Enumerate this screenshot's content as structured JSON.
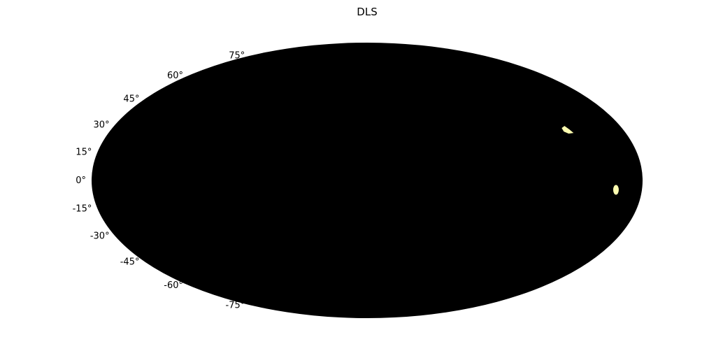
{
  "chart_data": {
    "type": "heatmap",
    "title": "DLS",
    "projection": "mollweide",
    "background_color": "#000000",
    "highlight_color": "#fdfdb0",
    "grid": false,
    "latitude_ticks": [
      {
        "value": 75,
        "label": "75°"
      },
      {
        "value": 60,
        "label": "60°"
      },
      {
        "value": 45,
        "label": "45°"
      },
      {
        "value": 30,
        "label": "30°"
      },
      {
        "value": 15,
        "label": "15°"
      },
      {
        "value": 0,
        "label": "0°"
      },
      {
        "value": -15,
        "label": "-15°"
      },
      {
        "value": -30,
        "label": "-30°"
      },
      {
        "value": -45,
        "label": "-45°"
      },
      {
        "value": -60,
        "label": "-60°"
      },
      {
        "value": -75,
        "label": "-75°"
      }
    ],
    "regions": [
      {
        "lon": 140,
        "lat": 27
      },
      {
        "lon": 163,
        "lat": -5
      }
    ]
  }
}
